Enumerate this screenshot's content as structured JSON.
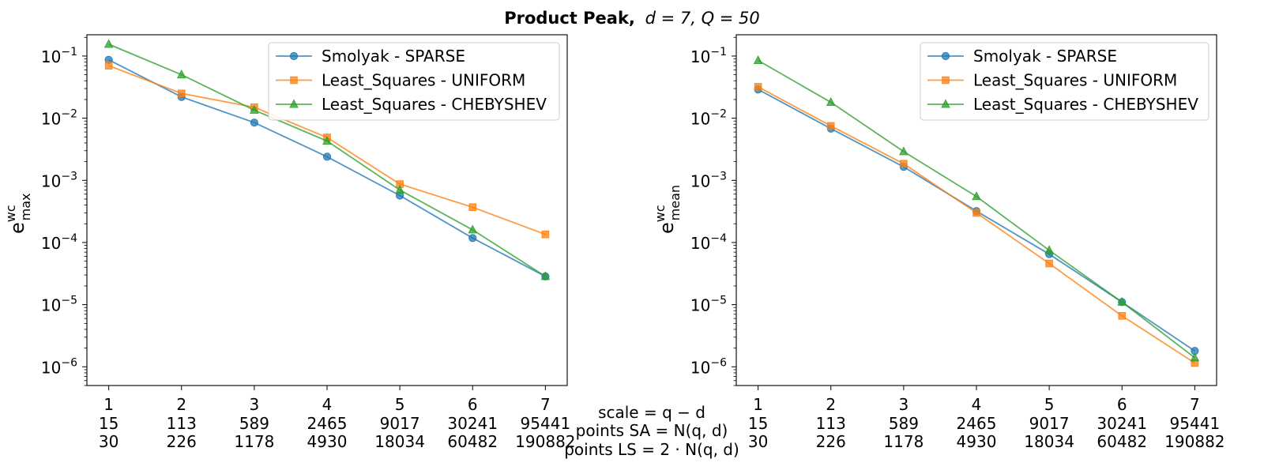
{
  "title": {
    "bold": "Product Peak,",
    "math": "d = 7, Q = 50"
  },
  "x_axis_labels": {
    "row1": "scale = q − d",
    "row2": "points SA = N(q, d)",
    "row3": "points LS = 2 · N(q, d)"
  },
  "colors": {
    "Smolyak - SPARSE": "#1f77b4",
    "Least_Squares - UNIFORM": "#ff7f0e",
    "Least_Squares - CHEBYSHEV": "#2ca02c"
  },
  "chart_data": [
    {
      "type": "line",
      "yscale": "log",
      "ylim": [
        5e-07,
        0.22
      ],
      "xlim": [
        0.7,
        7.3
      ],
      "ylabel": {
        "base": "e",
        "sup": "wc",
        "sub": "max"
      },
      "x": [
        1,
        2,
        3,
        4,
        5,
        6,
        7
      ],
      "xtick_rows": [
        [
          "1",
          "2",
          "3",
          "4",
          "5",
          "6",
          "7"
        ],
        [
          "15",
          "113",
          "589",
          "2465",
          "9017",
          "30241",
          "95441"
        ],
        [
          "30",
          "226",
          "1178",
          "4930",
          "18034",
          "60482",
          "190882"
        ]
      ],
      "yticks": [
        {
          "value": 1e-06,
          "mantissa": "10",
          "exp": "−6"
        },
        {
          "value": 1e-05,
          "mantissa": "10",
          "exp": "−5"
        },
        {
          "value": 0.0001,
          "mantissa": "10",
          "exp": "−4"
        },
        {
          "value": 0.001,
          "mantissa": "10",
          "exp": "−3"
        },
        {
          "value": 0.01,
          "mantissa": "10",
          "exp": "−2"
        },
        {
          "value": 0.1,
          "mantissa": "10",
          "exp": "−1"
        }
      ],
      "legend": "top-right",
      "series": [
        {
          "name": "Smolyak - SPARSE",
          "marker": "circle",
          "values": [
            0.087,
            0.022,
            0.0085,
            0.0024,
            0.00057,
            0.000118,
            2.85e-05
          ]
        },
        {
          "name": "Least_Squares - UNIFORM",
          "marker": "square",
          "values": [
            0.07,
            0.025,
            0.015,
            0.0049,
            0.00087,
            0.00037,
            0.000135
          ]
        },
        {
          "name": "Least_Squares - CHEBYSHEV",
          "marker": "triangle",
          "values": [
            0.155,
            0.05,
            0.0135,
            0.0043,
            0.0007,
            0.00016,
            2.85e-05
          ]
        }
      ]
    },
    {
      "type": "line",
      "yscale": "log",
      "ylim": [
        5e-07,
        0.22
      ],
      "xlim": [
        0.7,
        7.3
      ],
      "ylabel": {
        "base": "e",
        "sup": "wc",
        "sub": "mean"
      },
      "x": [
        1,
        2,
        3,
        4,
        5,
        6,
        7
      ],
      "xtick_rows": [
        [
          "1",
          "2",
          "3",
          "4",
          "5",
          "6",
          "7"
        ],
        [
          "15",
          "113",
          "589",
          "2465",
          "9017",
          "30241",
          "95441"
        ],
        [
          "30",
          "226",
          "1178",
          "4930",
          "18034",
          "60482",
          "190882"
        ]
      ],
      "yticks": [
        {
          "value": 1e-06,
          "mantissa": "10",
          "exp": "−6"
        },
        {
          "value": 1e-05,
          "mantissa": "10",
          "exp": "−5"
        },
        {
          "value": 0.0001,
          "mantissa": "10",
          "exp": "−4"
        },
        {
          "value": 0.001,
          "mantissa": "10",
          "exp": "−3"
        },
        {
          "value": 0.01,
          "mantissa": "10",
          "exp": "−2"
        },
        {
          "value": 0.1,
          "mantissa": "10",
          "exp": "−1"
        }
      ],
      "legend": "top-right",
      "series": [
        {
          "name": "Smolyak - SPARSE",
          "marker": "circle",
          "values": [
            0.029,
            0.0068,
            0.00165,
            0.00032,
            6.5e-05,
            1.1e-05,
            1.8e-06
          ]
        },
        {
          "name": "Least_Squares - UNIFORM",
          "marker": "square",
          "values": [
            0.032,
            0.0075,
            0.00185,
            0.0003,
            4.6e-05,
            6.6e-06,
            1.15e-06
          ]
        },
        {
          "name": "Least_Squares - CHEBYSHEV",
          "marker": "triangle",
          "values": [
            0.085,
            0.018,
            0.0029,
            0.00055,
            7.5e-05,
            1.1e-05,
            1.4e-06
          ]
        }
      ]
    }
  ]
}
